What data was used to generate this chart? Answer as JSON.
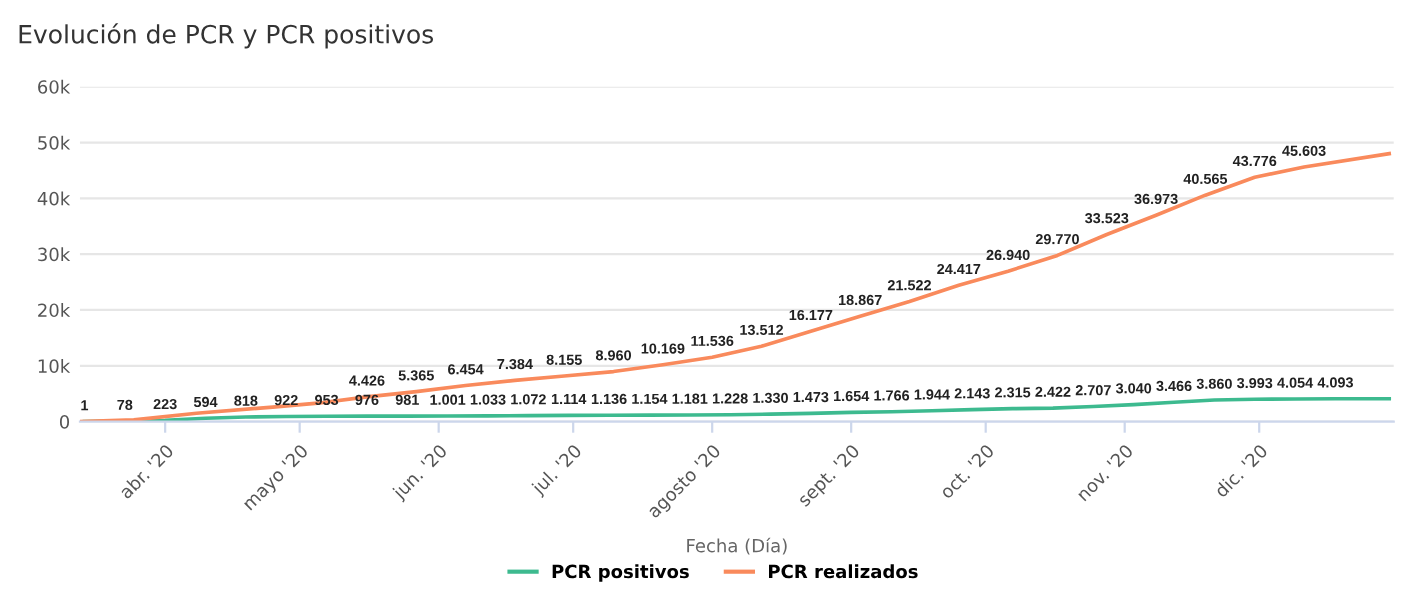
{
  "chart_data": {
    "type": "line",
    "title": "Evolución de PCR y PCR positivos",
    "xlabel": "Fecha (Día)",
    "xlim": [
      "2020-03-13",
      "2020-12-31"
    ],
    "xticks": [
      {
        "value": "2020-04-01",
        "label": "abr. '20"
      },
      {
        "value": "2020-05-01",
        "label": "mayo '20"
      },
      {
        "value": "2020-06-01",
        "label": "jun. '20"
      },
      {
        "value": "2020-07-01",
        "label": "jul. '20"
      },
      {
        "value": "2020-08-01",
        "label": "agosto '20"
      },
      {
        "value": "2020-09-01",
        "label": "sept. '20"
      },
      {
        "value": "2020-10-01",
        "label": "oct. '20"
      },
      {
        "value": "2020-11-01",
        "label": "nov. '20"
      },
      {
        "value": "2020-12-01",
        "label": "dic. '20"
      }
    ],
    "ylim": [
      0,
      60000
    ],
    "yticks": [
      0,
      {
        "value": 10000,
        "label": "10k"
      },
      {
        "value": 20000,
        "label": "20k"
      },
      {
        "value": 30000,
        "label": "30k"
      },
      {
        "value": 40000,
        "label": "40k"
      },
      {
        "value": 50000,
        "label": "50k"
      },
      {
        "value": 60000,
        "label": "60k"
      }
    ],
    "grid": "y",
    "legend": "bottom",
    "marker": "none",
    "line_style": "solid",
    "series": [
      {
        "name": "PCR positivos",
        "color": "#3dba8f",
        "x": [
          "2020-03-14",
          "2020-03-23",
          "2020-04-01",
          "2020-04-10",
          "2020-04-19",
          "2020-04-28",
          "2020-05-07",
          "2020-05-16",
          "2020-05-25",
          "2020-06-03",
          "2020-06-12",
          "2020-06-21",
          "2020-06-30",
          "2020-07-09",
          "2020-07-18",
          "2020-07-27",
          "2020-08-05",
          "2020-08-14",
          "2020-08-23",
          "2020-09-01",
          "2020-09-10",
          "2020-09-19",
          "2020-09-28",
          "2020-10-07",
          "2020-10-16",
          "2020-10-25",
          "2020-11-03",
          "2020-11-12",
          "2020-11-21",
          "2020-11-30",
          "2020-12-09",
          "2020-12-18",
          "2020-12-30"
        ],
        "values": [
          1,
          78,
          223,
          594,
          818,
          922,
          953,
          976,
          981,
          1001,
          1033,
          1072,
          1114,
          1136,
          1154,
          1181,
          1228,
          1330,
          1473,
          1654,
          1766,
          1944,
          2143,
          2315,
          2422,
          2707,
          3040,
          3466,
          3860,
          3993,
          4054,
          4093,
          4100
        ],
        "value_labels": [
          "1",
          "78",
          "223",
          "594",
          "818",
          "922",
          "953",
          "976",
          "981",
          "1.001",
          "1.033",
          "1.072",
          "1.114",
          "1.136",
          "1.154",
          "1.181",
          "1.228",
          "1.330",
          "1.473",
          "1.654",
          "1.766",
          "1.944",
          "2.143",
          "2.315",
          "2.422",
          "2.707",
          "3.040",
          "3.466",
          "3.860",
          "3.993",
          "4.054",
          "4.093",
          null
        ]
      },
      {
        "name": "PCR realizados",
        "color": "#f98a5c",
        "x": [
          "2020-03-13",
          "2020-03-25",
          "2020-04-08",
          "2020-04-25",
          "2020-05-05",
          "2020-05-16",
          "2020-05-27",
          "2020-06-07",
          "2020-06-18",
          "2020-06-29",
          "2020-07-10",
          "2020-07-21",
          "2020-08-01",
          "2020-08-12",
          "2020-08-23",
          "2020-09-03",
          "2020-09-14",
          "2020-09-25",
          "2020-10-06",
          "2020-10-17",
          "2020-10-28",
          "2020-11-08",
          "2020-11-19",
          "2020-11-30",
          "2020-12-11",
          "2020-12-30"
        ],
        "values": [
          0,
          300,
          1500,
          2600,
          3300,
          4426,
          5365,
          6454,
          7384,
          8155,
          8960,
          10169,
          11536,
          13512,
          16177,
          18867,
          21522,
          24417,
          26940,
          29770,
          33523,
          36973,
          40565,
          43776,
          45603,
          48000
        ],
        "value_labels": [
          null,
          null,
          null,
          null,
          null,
          "4.426",
          "5.365",
          "6.454",
          "7.384",
          "8.155",
          "8.960",
          "10.169",
          "11.536",
          "13.512",
          "16.177",
          "18.867",
          "21.522",
          "24.417",
          "26.940",
          "29.770",
          "33.523",
          "36.973",
          "40.565",
          "43.776",
          "45.603",
          null
        ]
      }
    ]
  }
}
